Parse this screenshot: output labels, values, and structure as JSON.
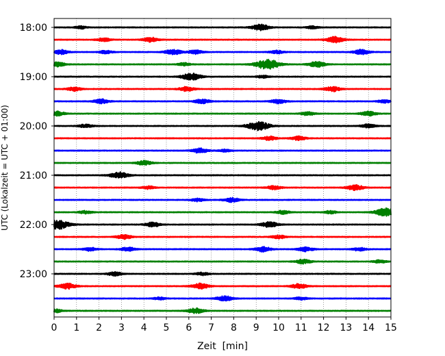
{
  "chart_data": {
    "type": "line",
    "xlabel": "Zeit  [min]",
    "ylabel": "UTC (Lokalzeit = UTC + 01:00)",
    "xlim": [
      0,
      15
    ],
    "x_ticks": [
      "0",
      "1",
      "2",
      "3",
      "4",
      "5",
      "6",
      "7",
      "8",
      "9",
      "10",
      "11",
      "12",
      "13",
      "14",
      "15"
    ],
    "y_ticks": [
      "18:00",
      "19:00",
      "20:00",
      "21:00",
      "22:00",
      "23:00"
    ],
    "grid": "vertical dotted",
    "trace_colors": [
      "#000000",
      "#ff0000",
      "#0000ff",
      "#008000"
    ],
    "series": [
      {
        "start": "18:00",
        "events": [
          [
            1.2,
            0.25
          ],
          [
            9.2,
            0.6
          ],
          [
            11.5,
            0.25
          ]
        ]
      },
      {
        "start": "18:15",
        "events": [
          [
            2.2,
            0.35
          ],
          [
            4.3,
            0.45
          ],
          [
            12.5,
            0.6
          ]
        ]
      },
      {
        "start": "18:30",
        "events": [
          [
            0.3,
            0.45
          ],
          [
            2.3,
            0.3
          ],
          [
            5.3,
            0.55
          ],
          [
            6.3,
            0.4
          ],
          [
            9.9,
            0.35
          ],
          [
            13.7,
            0.5
          ]
        ]
      },
      {
        "start": "18:45",
        "events": [
          [
            0.1,
            0.5
          ],
          [
            5.8,
            0.3
          ],
          [
            9.5,
            1.0
          ],
          [
            11.7,
            0.55
          ]
        ]
      },
      {
        "start": "19:00",
        "events": [
          [
            6.1,
            0.7
          ],
          [
            9.3,
            0.25
          ]
        ]
      },
      {
        "start": "19:15",
        "events": [
          [
            0.9,
            0.4
          ],
          [
            5.9,
            0.45
          ],
          [
            12.4,
            0.5
          ]
        ]
      },
      {
        "start": "19:30",
        "events": [
          [
            2.1,
            0.45
          ],
          [
            6.6,
            0.45
          ],
          [
            10.0,
            0.45
          ],
          [
            14.7,
            0.3
          ]
        ]
      },
      {
        "start": "19:45",
        "events": [
          [
            0.1,
            0.5
          ],
          [
            11.3,
            0.35
          ],
          [
            14.0,
            0.45
          ]
        ]
      },
      {
        "start": "20:00",
        "events": [
          [
            1.4,
            0.35
          ],
          [
            9.1,
            0.9
          ],
          [
            14.0,
            0.4
          ]
        ]
      },
      {
        "start": "20:15",
        "events": [
          [
            9.6,
            0.4
          ],
          [
            10.9,
            0.4
          ]
        ]
      },
      {
        "start": "20:30",
        "events": [
          [
            6.5,
            0.5
          ],
          [
            7.6,
            0.25
          ]
        ]
      },
      {
        "start": "20:45",
        "events": [
          [
            4.0,
            0.45
          ]
        ]
      },
      {
        "start": "21:00",
        "events": [
          [
            2.9,
            0.65
          ]
        ]
      },
      {
        "start": "21:15",
        "events": [
          [
            4.2,
            0.3
          ],
          [
            9.8,
            0.4
          ],
          [
            13.4,
            0.55
          ]
        ]
      },
      {
        "start": "21:30",
        "events": [
          [
            6.4,
            0.3
          ],
          [
            7.9,
            0.45
          ]
        ]
      },
      {
        "start": "21:45",
        "events": [
          [
            1.4,
            0.3
          ],
          [
            10.2,
            0.35
          ],
          [
            12.3,
            0.3
          ],
          [
            14.8,
            0.85
          ]
        ]
      },
      {
        "start": "22:00",
        "events": [
          [
            0.2,
            0.9
          ],
          [
            4.4,
            0.45
          ],
          [
            9.6,
            0.55
          ]
        ]
      },
      {
        "start": "22:15",
        "events": [
          [
            3.1,
            0.45
          ],
          [
            10.0,
            0.35
          ]
        ]
      },
      {
        "start": "22:30",
        "events": [
          [
            1.6,
            0.35
          ],
          [
            3.3,
            0.4
          ],
          [
            9.3,
            0.5
          ],
          [
            11.2,
            0.45
          ],
          [
            13.6,
            0.35
          ]
        ]
      },
      {
        "start": "22:45",
        "events": [
          [
            11.1,
            0.45
          ],
          [
            14.5,
            0.3
          ]
        ]
      },
      {
        "start": "23:00",
        "events": [
          [
            2.7,
            0.4
          ],
          [
            6.6,
            0.3
          ]
        ]
      },
      {
        "start": "23:15",
        "events": [
          [
            0.6,
            0.55
          ],
          [
            6.5,
            0.55
          ],
          [
            10.9,
            0.5
          ]
        ]
      },
      {
        "start": "23:30",
        "events": [
          [
            4.7,
            0.25
          ],
          [
            7.6,
            0.5
          ],
          [
            11.0,
            0.3
          ]
        ]
      },
      {
        "start": "23:45",
        "events": [
          [
            0.1,
            0.3
          ],
          [
            6.3,
            0.5
          ]
        ]
      }
    ]
  }
}
